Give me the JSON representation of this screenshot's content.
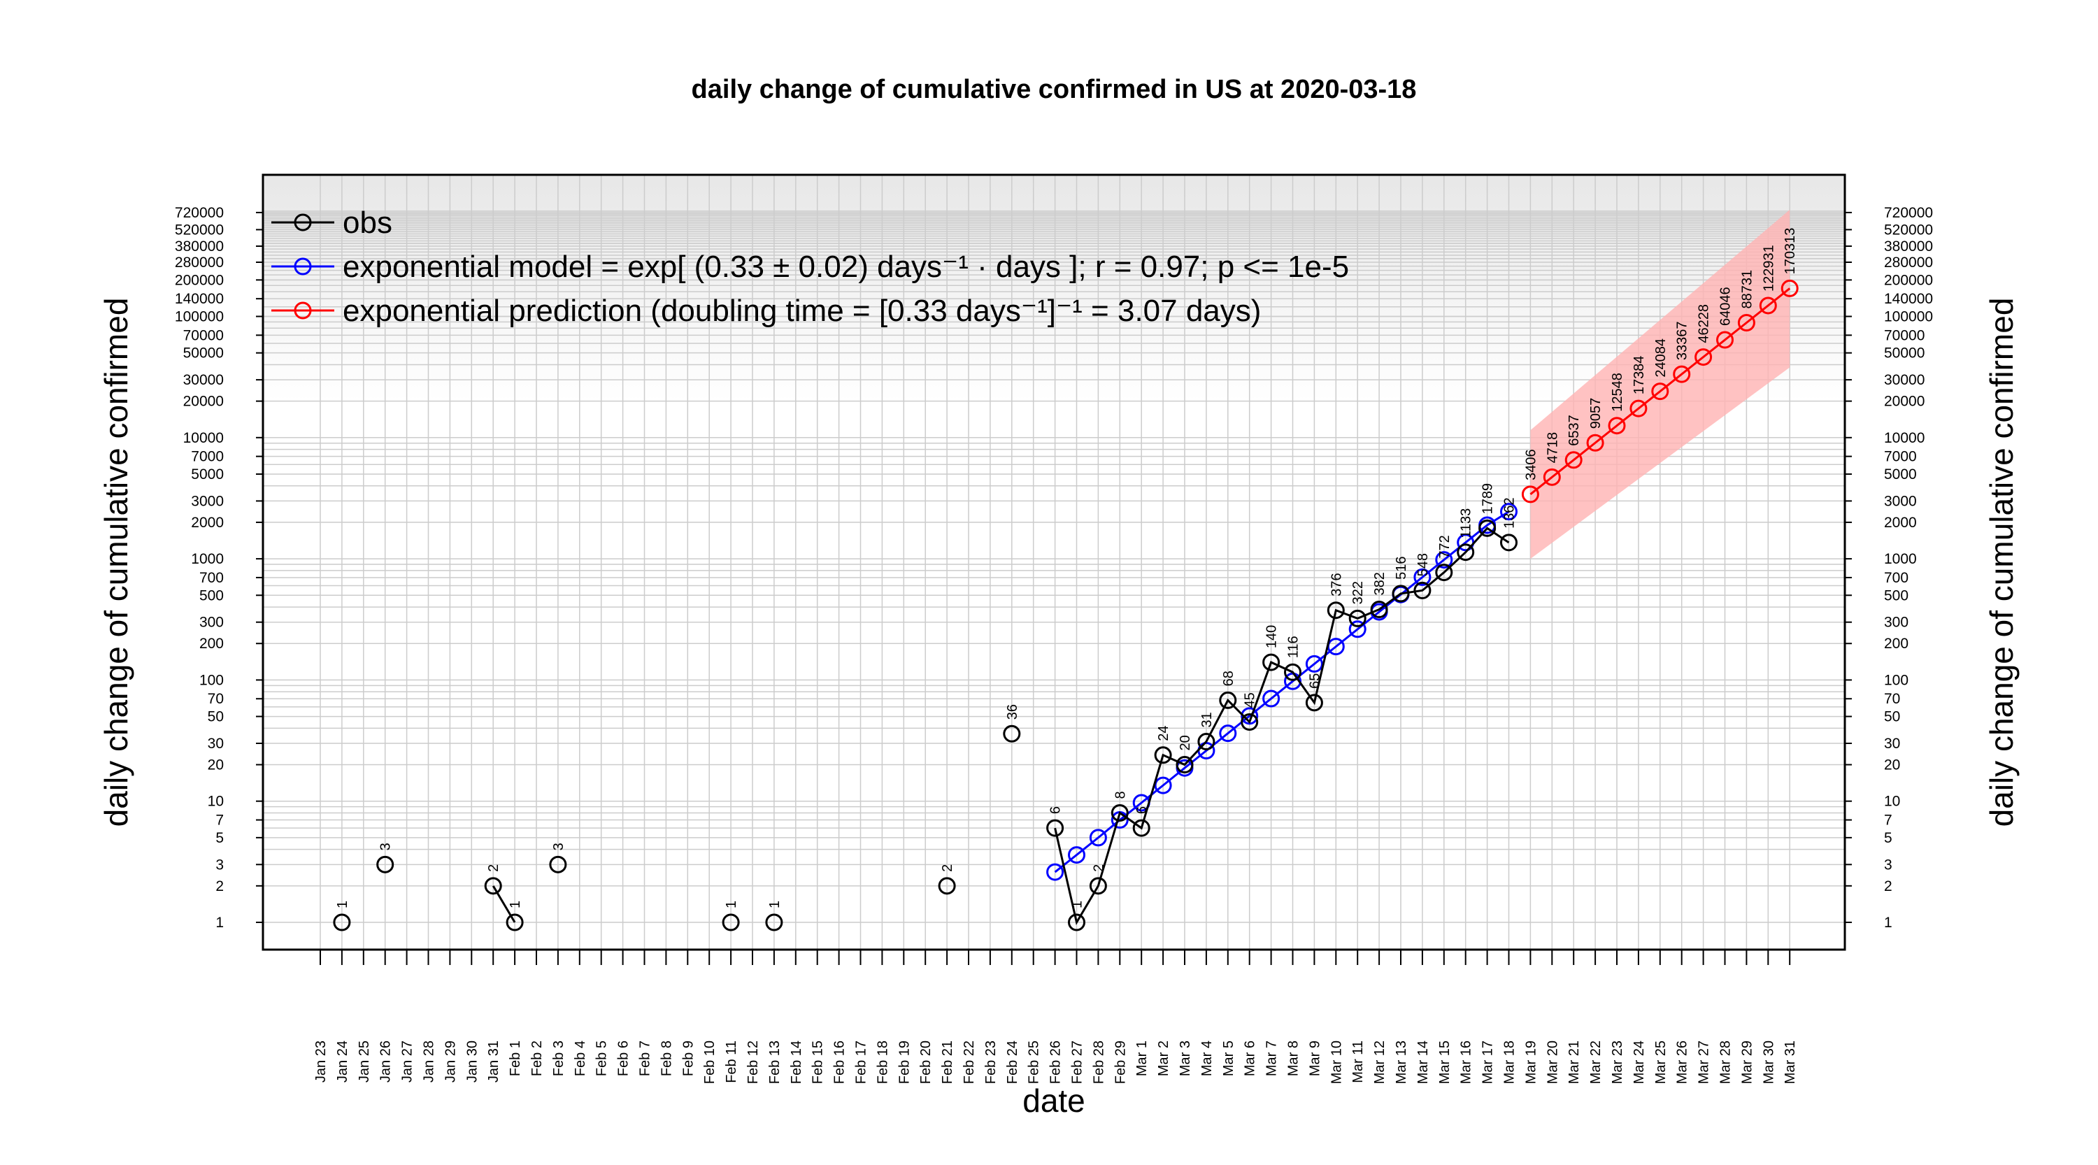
{
  "chart_data": {
    "type": "line",
    "title": "daily change of cumulative confirmed in US at 2020-03-18",
    "xlabel": "date",
    "ylabel": "daily change of cumulative confirmed",
    "y_scale": "log",
    "ylim": [
      0.8,
      750000
    ],
    "grid": true,
    "legend_position": "top-left",
    "x_ticks": [
      "Jan 23",
      "Jan 24",
      "Jan 25",
      "Jan 26",
      "Jan 27",
      "Jan 28",
      "Jan 29",
      "Jan 30",
      "Jan 31",
      "Feb 1",
      "Feb 2",
      "Feb 3",
      "Feb 4",
      "Feb 5",
      "Feb 6",
      "Feb 7",
      "Feb 8",
      "Feb 9",
      "Feb 10",
      "Feb 11",
      "Feb 12",
      "Feb 13",
      "Feb 14",
      "Feb 15",
      "Feb 16",
      "Feb 17",
      "Feb 18",
      "Feb 19",
      "Feb 20",
      "Feb 21",
      "Feb 22",
      "Feb 23",
      "Feb 24",
      "Feb 25",
      "Feb 26",
      "Feb 27",
      "Feb 28",
      "Feb 29",
      "Mar 1",
      "Mar 2",
      "Mar 3",
      "Mar 4",
      "Mar 5",
      "Mar 6",
      "Mar 7",
      "Mar 8",
      "Mar 9",
      "Mar 10",
      "Mar 11",
      "Mar 12",
      "Mar 13",
      "Mar 14",
      "Mar 15",
      "Mar 16",
      "Mar 17",
      "Mar 18",
      "Mar 19",
      "Mar 20",
      "Mar 21",
      "Mar 22",
      "Mar 23",
      "Mar 24",
      "Mar 25",
      "Mar 26",
      "Mar 27",
      "Mar 28",
      "Mar 29",
      "Mar 30",
      "Mar 31"
    ],
    "y_ticks": [
      1,
      2,
      3,
      5,
      7,
      10,
      20,
      30,
      50,
      70,
      100,
      200,
      300,
      500,
      700,
      1000,
      2000,
      3000,
      5000,
      7000,
      10000,
      20000,
      30000,
      50000,
      70000,
      100000,
      140000,
      200000,
      280000,
      380000,
      520000,
      720000
    ],
    "series": [
      {
        "name": "obs",
        "color": "#000000",
        "points": [
          {
            "date": "Jan 24",
            "value": 1,
            "label": "1"
          },
          {
            "date": "Jan 26",
            "value": 3,
            "label": "3"
          },
          {
            "date": "Jan 31",
            "value": 2,
            "label": "2"
          },
          {
            "date": "Feb 1",
            "value": 1,
            "label": "1"
          },
          {
            "date": "Feb 3",
            "value": 3,
            "label": "3"
          },
          {
            "date": "Feb 11",
            "value": 1,
            "label": "1"
          },
          {
            "date": "Feb 13",
            "value": 1,
            "label": "1"
          },
          {
            "date": "Feb 21",
            "value": 2,
            "label": "2"
          },
          {
            "date": "Feb 24",
            "value": 36,
            "label": "36"
          },
          {
            "date": "Feb 26",
            "value": 6,
            "label": "6"
          },
          {
            "date": "Feb 27",
            "value": 1,
            "label": "1"
          },
          {
            "date": "Feb 28",
            "value": 2,
            "label": "2"
          },
          {
            "date": "Feb 29",
            "value": 8,
            "label": "8"
          },
          {
            "date": "Mar 1",
            "value": 6,
            "label": "6"
          },
          {
            "date": "Mar 2",
            "value": 24,
            "label": "24"
          },
          {
            "date": "Mar 3",
            "value": 20,
            "label": "20"
          },
          {
            "date": "Mar 4",
            "value": 31,
            "label": "31"
          },
          {
            "date": "Mar 5",
            "value": 68,
            "label": "68"
          },
          {
            "date": "Mar 6",
            "value": 45,
            "label": "45"
          },
          {
            "date": "Mar 7",
            "value": 140,
            "label": "140"
          },
          {
            "date": "Mar 8",
            "value": 116,
            "label": "116"
          },
          {
            "date": "Mar 9",
            "value": 65,
            "label": "65"
          },
          {
            "date": "Mar 10",
            "value": 376,
            "label": "376"
          },
          {
            "date": "Mar 11",
            "value": 322,
            "label": "322"
          },
          {
            "date": "Mar 12",
            "value": 382,
            "label": "382"
          },
          {
            "date": "Mar 13",
            "value": 516,
            "label": "516"
          },
          {
            "date": "Mar 14",
            "value": 548,
            "label": "548"
          },
          {
            "date": "Mar 15",
            "value": 772,
            "label": "772"
          },
          {
            "date": "Mar 16",
            "value": 1133,
            "label": "1133"
          },
          {
            "date": "Mar 17",
            "value": 1789,
            "label": "1789"
          },
          {
            "date": "Mar 18",
            "value": 1362,
            "label": "1362"
          }
        ],
        "connected_runs": [
          [
            "Jan 31",
            "Feb 1"
          ],
          [
            "Feb 26",
            "Mar 18"
          ]
        ]
      },
      {
        "name": "exponential model",
        "color": "#0000ff",
        "points": [
          {
            "date": "Feb 26",
            "value": 2.6
          },
          {
            "date": "Feb 27",
            "value": 3.6
          },
          {
            "date": "Feb 28",
            "value": 5.0
          },
          {
            "date": "Feb 29",
            "value": 7.0
          },
          {
            "date": "Mar 1",
            "value": 9.7
          },
          {
            "date": "Mar 2",
            "value": 13.5
          },
          {
            "date": "Mar 3",
            "value": 18.8
          },
          {
            "date": "Mar 4",
            "value": 26.1
          },
          {
            "date": "Mar 5",
            "value": 36.3
          },
          {
            "date": "Mar 6",
            "value": 50.5
          },
          {
            "date": "Mar 7",
            "value": 70.2
          },
          {
            "date": "Mar 8",
            "value": 97.6
          },
          {
            "date": "Mar 9",
            "value": 135.7
          },
          {
            "date": "Mar 10",
            "value": 188.7
          },
          {
            "date": "Mar 11",
            "value": 262.4
          },
          {
            "date": "Mar 12",
            "value": 364.8
          },
          {
            "date": "Mar 13",
            "value": 507.2
          },
          {
            "date": "Mar 14",
            "value": 705.2
          },
          {
            "date": "Mar 15",
            "value": 980.5
          },
          {
            "date": "Mar 16",
            "value": 1363
          },
          {
            "date": "Mar 17",
            "value": 1895
          },
          {
            "date": "Mar 18",
            "value": 2450
          }
        ]
      },
      {
        "name": "exponential prediction",
        "color": "#ff0000",
        "band_color": "#ffb3b3",
        "points": [
          {
            "date": "Mar 19",
            "value": 3406,
            "label": "3406"
          },
          {
            "date": "Mar 20",
            "value": 4718,
            "label": "4718"
          },
          {
            "date": "Mar 21",
            "value": 6537,
            "label": "6537"
          },
          {
            "date": "Mar 22",
            "value": 9057,
            "label": "9057"
          },
          {
            "date": "Mar 23",
            "value": 12548,
            "label": "12548"
          },
          {
            "date": "Mar 24",
            "value": 17384,
            "label": "17384"
          },
          {
            "date": "Mar 25",
            "value": 24084,
            "label": "24084"
          },
          {
            "date": "Mar 26",
            "value": 33367,
            "label": "33367"
          },
          {
            "date": "Mar 27",
            "value": 46228,
            "label": "46228"
          },
          {
            "date": "Mar 28",
            "value": 64046,
            "label": "64046"
          },
          {
            "date": "Mar 29",
            "value": 88731,
            "label": "88731"
          },
          {
            "date": "Mar 30",
            "value": 122931,
            "label": "122931"
          },
          {
            "date": "Mar 31",
            "value": 170313,
            "label": "170313"
          }
        ],
        "band": {
          "start_date": "Mar 19",
          "end_date": "Mar 31",
          "lower": [
            1000,
            38000
          ],
          "upper": [
            11500,
            760000
          ]
        }
      }
    ],
    "legend": [
      {
        "text": "obs",
        "color": "#000000"
      },
      {
        "text": "exponential model = exp[ (0.33 ± 0.02) days⁻¹ · days ]; r = 0.97; p <= 1e-5",
        "color": "#0000ff"
      },
      {
        "text": "exponential prediction (doubling time = [0.33 days⁻¹]⁻¹ = 3.07 days)",
        "color": "#ff0000"
      }
    ]
  }
}
